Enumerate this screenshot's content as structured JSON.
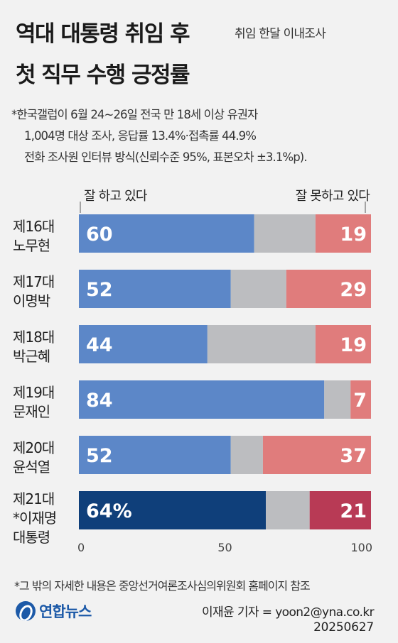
{
  "header": {
    "title_line1": "역대 대통령 취임 후",
    "title_line2": "첫 직무 수행 긍정률",
    "subtitle": "취임 한달 이내조사"
  },
  "notes": {
    "line1": "*한국갤럽이 6월 24~26일 전국 만 18세 이상 유권자",
    "line2": "1,004명 대상 조사, 응답률 13.4%·접촉률 44.9%",
    "line3": "전화 조사원 인터뷰 방식(신뢰수준 95%, 표본오차 ±3.1%p)."
  },
  "legend": {
    "positive": "잘 하고 있다",
    "negative": "잘 못하고 있다"
  },
  "colors": {
    "positive": "#5c87c8",
    "positive_highlight": "#0f3f7a",
    "neutral": "#bcbdc0",
    "negative": "#e07c7c",
    "negative_highlight": "#b83a55"
  },
  "chart_data": {
    "type": "bar",
    "orientation": "horizontal",
    "stacked": true,
    "categories": [
      "제16대\n노무현",
      "제17대\n이명박",
      "제18대\n박근혜",
      "제19대\n문재인",
      "제20대\n윤석열",
      "제21대\n*이재명\n대통령"
    ],
    "series": [
      {
        "name": "잘 하고 있다",
        "values": [
          60,
          52,
          44,
          84,
          52,
          64
        ]
      },
      {
        "values": [
          21,
          19,
          37,
          9,
          11,
          15
        ]
      },
      {
        "name": "잘 못하고 있다",
        "values": [
          19,
          29,
          19,
          7,
          37,
          21
        ]
      }
    ],
    "value_labels_positive": [
      "60",
      "52",
      "44",
      "84",
      "52",
      "64%"
    ],
    "value_labels_negative": [
      "19",
      "29",
      "19",
      "7",
      "37",
      "21"
    ],
    "highlight_index": 5,
    "x_ticks": [
      0,
      50,
      100
    ],
    "xlim": [
      0,
      100
    ]
  },
  "footnote": "*그 밖의 자세한 내용은 중앙선거여론조사심의위원회 홈페이지 참조",
  "footer": {
    "logo_text": "연합뉴스",
    "credit": "이재윤 기자 = yoon2@yna.co.kr",
    "date": "20250627"
  }
}
